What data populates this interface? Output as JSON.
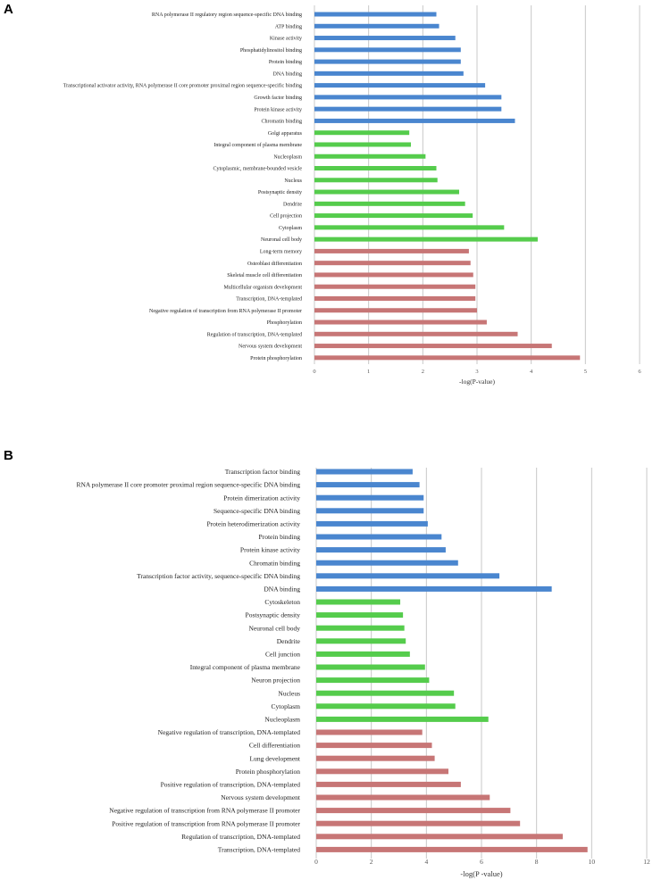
{
  "colors": {
    "molecular_function": "#4a86cf",
    "cellular_component": "#55cc4c",
    "biological_process": "#c77676",
    "grid": "#c8c8c8"
  },
  "chart_data": [
    {
      "panel": "A",
      "type": "bar",
      "orientation": "horizontal",
      "xlabel": "-log(P-value)",
      "xlim": [
        0,
        6
      ],
      "xticks": [
        "0",
        "1",
        "2",
        "3",
        "4",
        "5",
        "6"
      ],
      "categories": [
        "RNA polymerase II regulatory region sequence-specific DNA binding",
        "ATP binding",
        "Kinase activity",
        "Phosphatidylinositol binding",
        "Protein binding",
        "DNA binding",
        "Transcriptional activator activity, RNA polymerase II core promoter proximal region sequence-specific binding",
        "Growth factor binding",
        "Protein kinase activity",
        "Chromatin binding",
        "Golgi apparatus",
        "Integral component of plasma membrane",
        "Nucleoplasm",
        "Cytoplasmic, membrane-bounded vesicle",
        "Nucleus",
        "Postsynaptic density",
        "Dendrite",
        "Cell projection",
        "Cytoplasm",
        "Neuronal cell body",
        "Long-term memory",
        "Osteoblast differentiation",
        "Skeletal muscle cell differentiation",
        "Multicellular organism development",
        "Transcription, DNA-templated",
        "Negative regulation of transcription from RNA polymerase II promoter",
        "Phosphorylation",
        "Regulation of transcription, DNA-templated",
        "Nervous system development",
        "Protein phosphorylation"
      ],
      "values": [
        2.25,
        2.3,
        2.6,
        2.7,
        2.7,
        2.75,
        3.15,
        3.45,
        3.45,
        3.7,
        1.75,
        1.78,
        2.05,
        2.25,
        2.27,
        2.67,
        2.78,
        2.92,
        3.5,
        4.12,
        2.85,
        2.88,
        2.93,
        2.97,
        2.97,
        3.0,
        3.18,
        3.75,
        4.38,
        4.9
      ],
      "groups": [
        "molecular_function",
        "molecular_function",
        "molecular_function",
        "molecular_function",
        "molecular_function",
        "molecular_function",
        "molecular_function",
        "molecular_function",
        "molecular_function",
        "molecular_function",
        "cellular_component",
        "cellular_component",
        "cellular_component",
        "cellular_component",
        "cellular_component",
        "cellular_component",
        "cellular_component",
        "cellular_component",
        "cellular_component",
        "cellular_component",
        "biological_process",
        "biological_process",
        "biological_process",
        "biological_process",
        "biological_process",
        "biological_process",
        "biological_process",
        "biological_process",
        "biological_process",
        "biological_process"
      ]
    },
    {
      "panel": "B",
      "type": "bar",
      "orientation": "horizontal",
      "xlabel": "-log(P -value)",
      "xlim": [
        0,
        12
      ],
      "xticks": [
        "0",
        "2",
        "4",
        "6",
        "8",
        "10",
        "12"
      ],
      "categories": [
        "Transcription factor binding",
        "RNA polymerase II core promoter proximal region sequence-specific DNA binding",
        "Protein dimerization activity",
        "Sequence-specific DNA binding",
        "Protein heterodimerization activity",
        "Protein binding",
        "Protein kinase activity",
        "Chromatin binding",
        "Transcription factor activity, sequence-specific DNA binding",
        "DNA binding",
        "Cytoskeleton",
        "Postsynaptic density",
        "Neuronal cell body",
        "Dendrite",
        "Cell junction",
        "Integral component of plasma membrane",
        "Neuron projection",
        "Nucleus",
        "Cytoplasm",
        "Nucleoplasm",
        "Negative regulation of transcription, DNA-templated",
        "Cell differentiation",
        "Lung development",
        "Protein phosphorylation",
        "Positive regulation of transcription, DNA-templated",
        "Nervous system development",
        "Negative regulation of transcription from RNA polymerase II promoter",
        "Positive regulation of transcription from RNA polymerase II promoter",
        "Regulation of transcription, DNA-templated",
        "Transcription, DNA-templated"
      ],
      "values": [
        3.5,
        3.75,
        3.9,
        3.9,
        4.05,
        4.55,
        4.7,
        5.15,
        6.65,
        8.55,
        3.05,
        3.15,
        3.2,
        3.25,
        3.4,
        3.95,
        4.1,
        5.0,
        5.05,
        6.25,
        3.85,
        4.2,
        4.3,
        4.8,
        5.25,
        6.3,
        7.05,
        7.4,
        8.95,
        9.85
      ],
      "groups": [
        "molecular_function",
        "molecular_function",
        "molecular_function",
        "molecular_function",
        "molecular_function",
        "molecular_function",
        "molecular_function",
        "molecular_function",
        "molecular_function",
        "molecular_function",
        "cellular_component",
        "cellular_component",
        "cellular_component",
        "cellular_component",
        "cellular_component",
        "cellular_component",
        "cellular_component",
        "cellular_component",
        "cellular_component",
        "cellular_component",
        "biological_process",
        "biological_process",
        "biological_process",
        "biological_process",
        "biological_process",
        "biological_process",
        "biological_process",
        "biological_process",
        "biological_process",
        "biological_process"
      ]
    }
  ]
}
